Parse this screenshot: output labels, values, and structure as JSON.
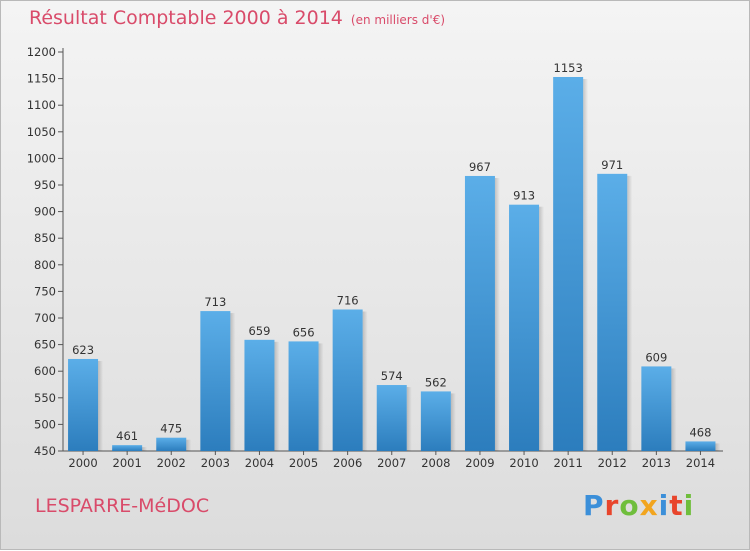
{
  "header": {
    "title": "Résultat Comptable 2000 à 2014",
    "subtitle": "(en milliers d'€)"
  },
  "footer": {
    "place": "LESPARRE-MéDOC",
    "brand": "Proxiti"
  },
  "colors": {
    "bar_top": "#5baee8",
    "bar_bottom": "#2c7dbd",
    "title": "#d94b6a"
  },
  "chart_data": {
    "type": "bar",
    "title": "Résultat Comptable 2000 à 2014",
    "subtitle": "(en milliers d'€)",
    "categories": [
      "2000",
      "2001",
      "2002",
      "2003",
      "2004",
      "2005",
      "2006",
      "2007",
      "2008",
      "2009",
      "2010",
      "2011",
      "2012",
      "2013",
      "2014"
    ],
    "values": [
      623,
      461,
      475,
      713,
      659,
      656,
      716,
      574,
      562,
      967,
      913,
      1153,
      971,
      609,
      468
    ],
    "ylim": [
      450,
      1200
    ],
    "yticks": [
      450,
      500,
      550,
      600,
      650,
      700,
      750,
      800,
      850,
      900,
      950,
      1000,
      1050,
      1100,
      1150,
      1200
    ],
    "grid": false
  }
}
